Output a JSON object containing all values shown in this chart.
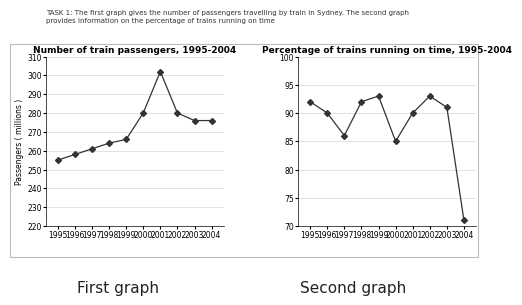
{
  "task_text": "TASK 1: The first graph gives the number of passengers travelling by train in Sydney. The second graph\nprovides information on the percentage of trains running on time",
  "years": [
    1995,
    1996,
    1997,
    1998,
    1999,
    2000,
    2001,
    2002,
    2003,
    2004
  ],
  "passengers": [
    255,
    258,
    261,
    264,
    266,
    280,
    302,
    280,
    276,
    276
  ],
  "pct_on_time": [
    92,
    90,
    86,
    92,
    93,
    85,
    90,
    93,
    91,
    71
  ],
  "graph1_title": "Number of train passengers, 1995-2004",
  "graph2_title": "Percentage of trains running on time, 1995-2004",
  "graph1_ylabel": "Passengers ( millions )",
  "graph1_ylim": [
    220,
    310
  ],
  "graph1_yticks": [
    220,
    230,
    240,
    250,
    260,
    270,
    280,
    290,
    300,
    310
  ],
  "graph2_ylim": [
    70,
    100
  ],
  "graph2_yticks": [
    70,
    75,
    80,
    85,
    90,
    95,
    100
  ],
  "label1": "First graph",
  "label2": "Second graph",
  "line_color": "#333333",
  "marker": "D",
  "marker_size": 3,
  "bg_color": "#ffffff",
  "panel_bg": "#ffffff",
  "title_fontsize": 6.5,
  "tick_fontsize": 5.5,
  "ylabel_fontsize": 5.5,
  "caption_fontsize": 11
}
